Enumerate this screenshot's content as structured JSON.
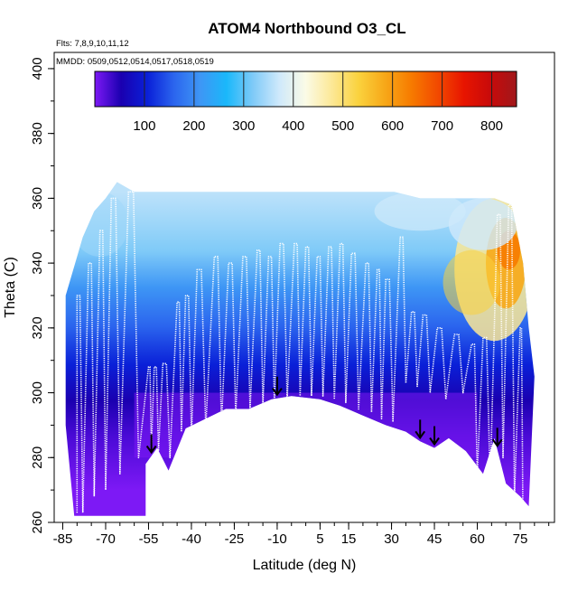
{
  "chart_data": {
    "type": "heatmap",
    "title": "ATOM4 Northbound O3_CL",
    "flights_label": "Flts: 7,8,9,10,11,12",
    "dates_label": "MMDD: 0509,0512,0514,0517,0518,0519",
    "xlabel": "Latitude (deg N)",
    "ylabel": "Theta (C)",
    "xlim": [
      -88,
      87
    ],
    "ylim": [
      260,
      405
    ],
    "x_ticks": [
      -85,
      -70,
      -55,
      -40,
      -25,
      -10,
      5,
      15,
      30,
      45,
      60,
      75
    ],
    "y_ticks": [
      260,
      280,
      300,
      320,
      340,
      360,
      380,
      400
    ],
    "colorbar": {
      "range": [
        0,
        850
      ],
      "tick_values": [
        100,
        200,
        300,
        400,
        500,
        600,
        700,
        800
      ],
      "colors": [
        "#7d19f5",
        "#1a00b0",
        "#0a20d8",
        "#2b65ee",
        "#3e96f5",
        "#1ab8fa",
        "#7fcaf8",
        "#cfe9fb",
        "#fbfbe6",
        "#fce896",
        "#fad23e",
        "#f7a818",
        "#f77b00",
        "#f24a00",
        "#e81500",
        "#c80a0a",
        "#a0181b"
      ]
    },
    "arrow_latitudes": [
      -54,
      -10,
      40,
      45,
      67
    ],
    "arrow_color": "#000000",
    "tropopause_theta": [
      {
        "lat": -56,
        "theta": 278
      },
      {
        "lat": -52,
        "theta": 283
      },
      {
        "lat": -48,
        "theta": 276
      },
      {
        "lat": -42,
        "theta": 289
      },
      {
        "lat": -35,
        "theta": 292
      },
      {
        "lat": -28,
        "theta": 295
      },
      {
        "lat": -20,
        "theta": 295
      },
      {
        "lat": -12,
        "theta": 298
      },
      {
        "lat": -5,
        "theta": 299
      },
      {
        "lat": 5,
        "theta": 298
      },
      {
        "lat": 12,
        "theta": 296
      },
      {
        "lat": 20,
        "theta": 293
      },
      {
        "lat": 28,
        "theta": 290
      },
      {
        "lat": 35,
        "theta": 288
      },
      {
        "lat": 40,
        "theta": 285
      },
      {
        "lat": 45,
        "theta": 283
      },
      {
        "lat": 50,
        "theta": 286
      },
      {
        "lat": 56,
        "theta": 282
      },
      {
        "lat": 62,
        "theta": 275
      },
      {
        "lat": 66,
        "theta": 286
      },
      {
        "lat": 70,
        "theta": 272
      },
      {
        "lat": 75,
        "theta": 268
      },
      {
        "lat": 78,
        "theta": 265
      }
    ],
    "upper_boundary_theta": [
      {
        "lat": -84,
        "theta": 330
      },
      {
        "lat": -78,
        "theta": 348
      },
      {
        "lat": -74,
        "theta": 356
      },
      {
        "lat": -70,
        "theta": 360
      },
      {
        "lat": -66,
        "theta": 365
      },
      {
        "lat": -60,
        "theta": 362
      },
      {
        "lat": -45,
        "theta": 362
      },
      {
        "lat": -20,
        "theta": 362
      },
      {
        "lat": 0,
        "theta": 362
      },
      {
        "lat": 15,
        "theta": 362
      },
      {
        "lat": 31,
        "theta": 362
      },
      {
        "lat": 40,
        "theta": 360
      },
      {
        "lat": 55,
        "theta": 360
      },
      {
        "lat": 66,
        "theta": 360
      },
      {
        "lat": 72,
        "theta": 358
      },
      {
        "lat": 76,
        "theta": 340
      },
      {
        "lat": 78,
        "theta": 320
      },
      {
        "lat": 80,
        "theta": 305
      }
    ],
    "flight_profiles": [
      {
        "lat": -80,
        "top": 330,
        "bottom": 263
      },
      {
        "lat": -76,
        "top": 340,
        "bottom": 268
      },
      {
        "lat": -72,
        "top": 350,
        "bottom": 270
      },
      {
        "lat": -68,
        "top": 360,
        "bottom": 275
      },
      {
        "lat": -62,
        "top": 362,
        "bottom": 280
      },
      {
        "lat": -55,
        "top": 308,
        "bottom": 283
      },
      {
        "lat": -53,
        "top": 308,
        "bottom": 282
      },
      {
        "lat": -50,
        "top": 309,
        "bottom": 280
      },
      {
        "lat": -45,
        "top": 328,
        "bottom": 288
      },
      {
        "lat": -42,
        "top": 330,
        "bottom": 287
      },
      {
        "lat": -38,
        "top": 338,
        "bottom": 289
      },
      {
        "lat": -32,
        "top": 342,
        "bottom": 290
      },
      {
        "lat": -27,
        "top": 340,
        "bottom": 293
      },
      {
        "lat": -22,
        "top": 342,
        "bottom": 295
      },
      {
        "lat": -17,
        "top": 344,
        "bottom": 296
      },
      {
        "lat": -13,
        "top": 342,
        "bottom": 297
      },
      {
        "lat": -9,
        "top": 346,
        "bottom": 298
      },
      {
        "lat": -4,
        "top": 346,
        "bottom": 299
      },
      {
        "lat": 0,
        "top": 345,
        "bottom": 299
      },
      {
        "lat": 4,
        "top": 342,
        "bottom": 299
      },
      {
        "lat": 8,
        "top": 345,
        "bottom": 298
      },
      {
        "lat": 12,
        "top": 346,
        "bottom": 297
      },
      {
        "lat": 16,
        "top": 343,
        "bottom": 295
      },
      {
        "lat": 21,
        "top": 340,
        "bottom": 294
      },
      {
        "lat": 25,
        "top": 338,
        "bottom": 292
      },
      {
        "lat": 28,
        "top": 335,
        "bottom": 291
      },
      {
        "lat": 33,
        "top": 348,
        "bottom": 303
      },
      {
        "lat": 37,
        "top": 325,
        "bottom": 302
      },
      {
        "lat": 41,
        "top": 324,
        "bottom": 300
      },
      {
        "lat": 46,
        "top": 320,
        "bottom": 298
      },
      {
        "lat": 52,
        "top": 318,
        "bottom": 300
      },
      {
        "lat": 58,
        "top": 315,
        "bottom": 275
      },
      {
        "lat": 62,
        "top": 317,
        "bottom": 272
      },
      {
        "lat": 67,
        "top": 355,
        "bottom": 280
      },
      {
        "lat": 71,
        "top": 358,
        "bottom": 268
      },
      {
        "lat": 75,
        "top": 320,
        "bottom": 263
      }
    ]
  }
}
